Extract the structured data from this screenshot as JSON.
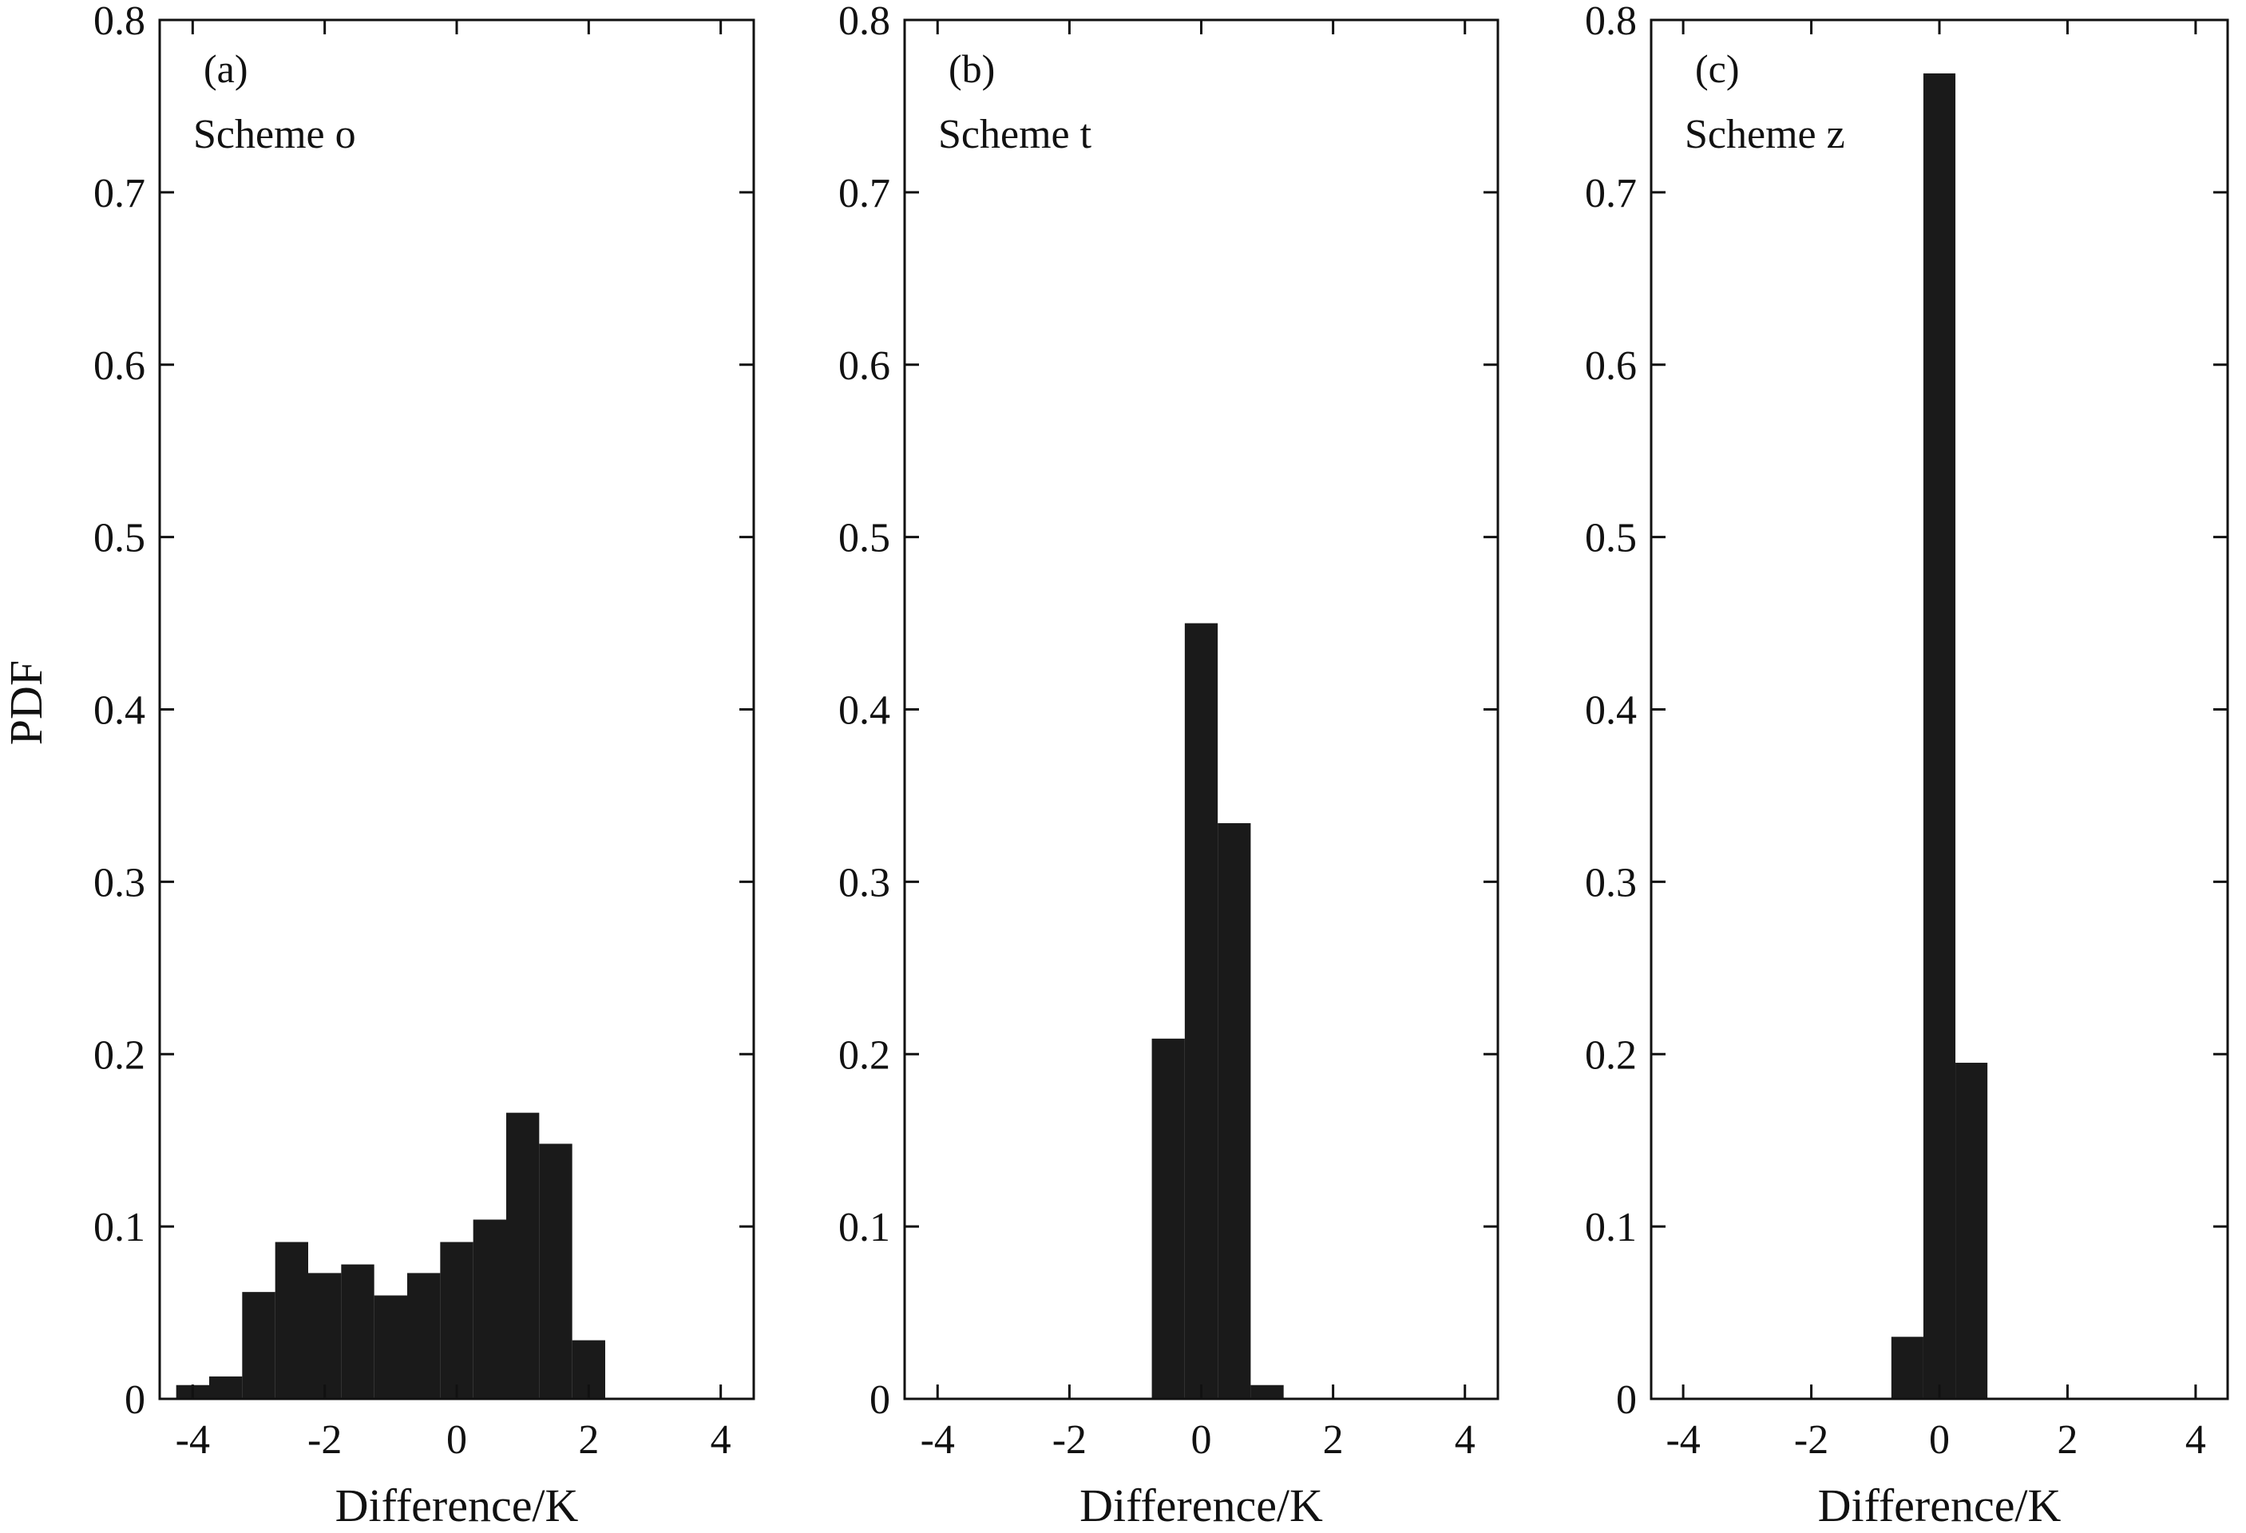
{
  "figure": {
    "ylabel": "PDF",
    "bar_color": "#1a1a1a"
  },
  "chart_data": [
    {
      "type": "bar",
      "panel_label": "(a)",
      "scheme": "Scheme o",
      "xlabel": "Difference/K",
      "ylabel": "PDF",
      "xlim": [
        -4.5,
        4.5
      ],
      "ylim": [
        0,
        0.8
      ],
      "xticks": [
        -4,
        -2,
        0,
        2,
        4
      ],
      "yticks": [
        0,
        0.1,
        0.2,
        0.3,
        0.4,
        0.5,
        0.6,
        0.7,
        0.8
      ],
      "bin_width": 0.5,
      "bin_centers": [
        -4.0,
        -3.5,
        -3.0,
        -2.5,
        -2.0,
        -1.5,
        -1.0,
        -0.5,
        0.0,
        0.5,
        1.0,
        1.5,
        2.0
      ],
      "values": [
        0.008,
        0.013,
        0.062,
        0.091,
        0.073,
        0.078,
        0.06,
        0.073,
        0.091,
        0.104,
        0.166,
        0.148,
        0.034
      ]
    },
    {
      "type": "bar",
      "panel_label": "(b)",
      "scheme": "Scheme t",
      "xlabel": "Difference/K",
      "ylabel": "",
      "xlim": [
        -4.5,
        4.5
      ],
      "ylim": [
        0,
        0.8
      ],
      "xticks": [
        -4,
        -2,
        0,
        2,
        4
      ],
      "yticks": [
        0,
        0.1,
        0.2,
        0.3,
        0.4,
        0.5,
        0.6,
        0.7,
        0.8
      ],
      "bin_width": 0.5,
      "bin_centers": [
        -0.5,
        0.0,
        0.5,
        1.0
      ],
      "values": [
        0.209,
        0.45,
        0.334,
        0.008
      ]
    },
    {
      "type": "bar",
      "panel_label": "(c)",
      "scheme": "Scheme z",
      "xlabel": "Difference/K",
      "ylabel": "",
      "xlim": [
        -4.5,
        4.5
      ],
      "ylim": [
        0,
        0.8
      ],
      "xticks": [
        -4,
        -2,
        0,
        2,
        4
      ],
      "yticks": [
        0,
        0.1,
        0.2,
        0.3,
        0.4,
        0.5,
        0.6,
        0.7,
        0.8
      ],
      "bin_width": 0.5,
      "bin_centers": [
        -0.5,
        0.0,
        0.5
      ],
      "values": [
        0.036,
        0.769,
        0.195
      ]
    }
  ]
}
